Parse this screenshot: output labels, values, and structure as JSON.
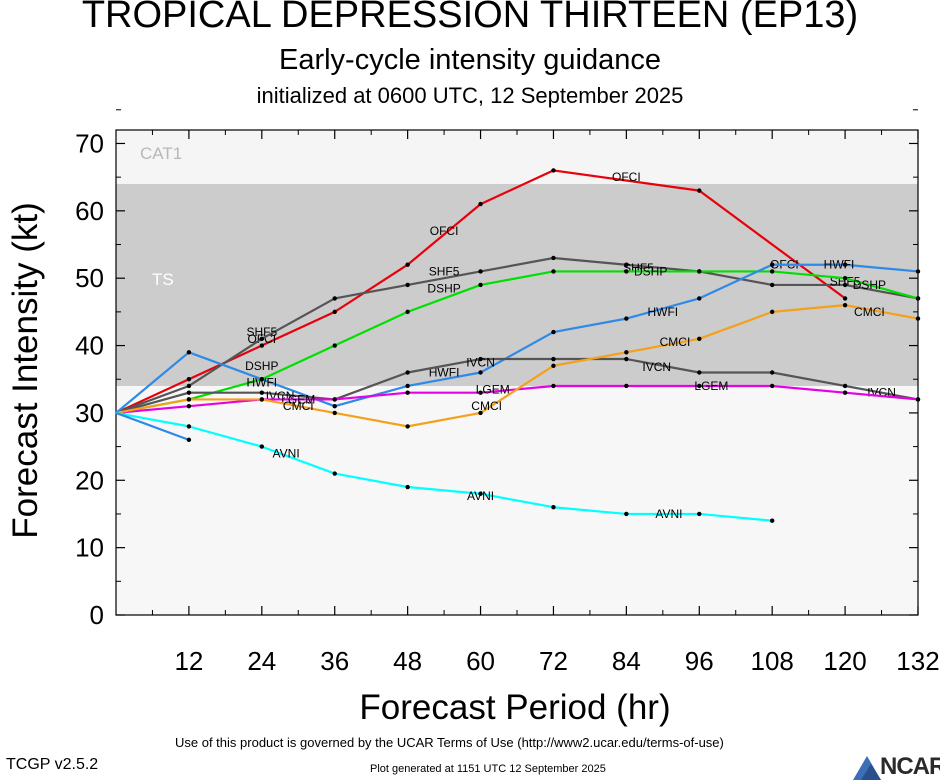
{
  "title": "TROPICAL DEPRESSION THIRTEEN (EP13)",
  "subtitle": "Early-cycle intensity guidance",
  "initialized": "initialized at 0600 UTC, 12 September 2025",
  "footer": {
    "terms": "Use of this product is governed by the UCAR Terms of Use (http://www2.ucar.edu/terms-of-use)",
    "version": "TCGP v2.5.2",
    "generated": "Plot generated at 1151 UTC   12 September 2025",
    "logo_text": "NCAR"
  },
  "chart_data": {
    "type": "line",
    "xlabel": "Forecast Period (hr)",
    "ylabel": "Forecast Intensity (kt)",
    "xlim": [
      0,
      132
    ],
    "ylim": [
      0,
      72
    ],
    "xticks": [
      12,
      24,
      36,
      48,
      60,
      72,
      84,
      96,
      108,
      120,
      132
    ],
    "yticks": [
      0,
      10,
      20,
      30,
      40,
      50,
      60,
      70
    ],
    "bands": [
      {
        "name": "TS",
        "from": 34,
        "to": 64,
        "color": "#cccccc"
      },
      {
        "name": "CAT1",
        "from": 64,
        "to": 72,
        "color": "#f5f5f5"
      }
    ],
    "background_color": "#f7f7f7",
    "series": [
      {
        "name": "OFCI",
        "color": "#e8000b",
        "x": [
          0,
          12,
          24,
          36,
          48,
          60,
          72,
          96,
          120
        ],
        "y": [
          30,
          35,
          40,
          45,
          52,
          61,
          66,
          63,
          47
        ],
        "labels": [
          {
            "x": 24,
            "y": 41
          },
          {
            "x": 54,
            "y": 57
          },
          {
            "x": 84,
            "y": 65
          },
          {
            "x": 110,
            "y": 52
          }
        ]
      },
      {
        "name": "SHF5",
        "color": "#555555",
        "x": [
          0,
          12,
          24,
          36,
          48,
          60,
          72,
          84,
          96,
          108,
          120,
          132
        ],
        "y": [
          30,
          34,
          41,
          47,
          49,
          51,
          53,
          52,
          51,
          49,
          49,
          47
        ],
        "labels": [
          {
            "x": 24,
            "y": 42
          },
          {
            "x": 54,
            "y": 51
          },
          {
            "x": 86,
            "y": 51.5
          },
          {
            "x": 120,
            "y": 49.5
          }
        ]
      },
      {
        "name": "DSHP",
        "color": "#00e000",
        "x": [
          0,
          12,
          24,
          36,
          48,
          60,
          72,
          84,
          96,
          108,
          120,
          132
        ],
        "y": [
          30,
          32,
          35,
          40,
          45,
          49,
          51,
          51,
          51,
          51,
          50,
          47
        ],
        "labels": [
          {
            "x": 24,
            "y": 37
          },
          {
            "x": 54,
            "y": 48.5
          },
          {
            "x": 88,
            "y": 51
          },
          {
            "x": 124,
            "y": 49
          }
        ]
      },
      {
        "name": "HWFI",
        "color": "#2e8ae6",
        "x": [
          0,
          12,
          24,
          36,
          48,
          60,
          72,
          84,
          96,
          108,
          120,
          132
        ],
        "y": [
          30,
          39,
          35,
          31,
          34,
          36,
          42,
          44,
          47,
          52,
          52,
          51
        ],
        "labels": [
          {
            "x": 24,
            "y": 34.5
          },
          {
            "x": 54,
            "y": 36
          },
          {
            "x": 90,
            "y": 45
          },
          {
            "x": 119,
            "y": 52
          }
        ]
      },
      {
        "name": "IVCN",
        "color": "#555555",
        "x": [
          0,
          12,
          24,
          36,
          48,
          60,
          72,
          84,
          96,
          108,
          120,
          132
        ],
        "y": [
          30,
          33,
          33,
          32,
          36,
          38,
          38,
          38,
          36,
          36,
          34,
          32
        ],
        "labels": [
          {
            "x": 27,
            "y": 32.5
          },
          {
            "x": 60,
            "y": 37.5
          },
          {
            "x": 89,
            "y": 36.8
          },
          {
            "x": 126,
            "y": 33
          }
        ]
      },
      {
        "name": "LGEM",
        "color": "#e600e6",
        "x": [
          0,
          12,
          24,
          36,
          48,
          60,
          72,
          84,
          96,
          108,
          120,
          132
        ],
        "y": [
          30,
          31,
          32,
          32,
          33,
          33,
          34,
          34,
          34,
          34,
          33,
          32
        ],
        "labels": [
          {
            "x": 30,
            "y": 32
          },
          {
            "x": 62,
            "y": 33.5
          },
          {
            "x": 98,
            "y": 34
          }
        ]
      },
      {
        "name": "CMCI",
        "color": "#f5a01a",
        "x": [
          0,
          12,
          24,
          36,
          48,
          60,
          72,
          84,
          96,
          108,
          120,
          132
        ],
        "y": [
          30,
          32,
          32,
          30,
          28,
          30,
          37,
          39,
          41,
          45,
          46,
          44
        ],
        "labels": [
          {
            "x": 30,
            "y": 31
          },
          {
            "x": 61,
            "y": 31
          },
          {
            "x": 92,
            "y": 40.5
          },
          {
            "x": 124,
            "y": 45
          }
        ]
      },
      {
        "name": "AVNI",
        "color": "#00ffff",
        "x": [
          0,
          12,
          24,
          36,
          48,
          60,
          72,
          84,
          96,
          108
        ],
        "y": [
          30,
          28,
          25,
          21,
          19,
          18,
          16,
          15,
          15,
          14
        ],
        "labels": [
          {
            "x": 28,
            "y": 24
          },
          {
            "x": 60,
            "y": 17.7
          },
          {
            "x": 91,
            "y": 15
          }
        ]
      },
      {
        "name": "",
        "color": "#2e8ae6",
        "x": [
          0,
          12
        ],
        "y": [
          30,
          26
        ],
        "labels": []
      }
    ]
  }
}
